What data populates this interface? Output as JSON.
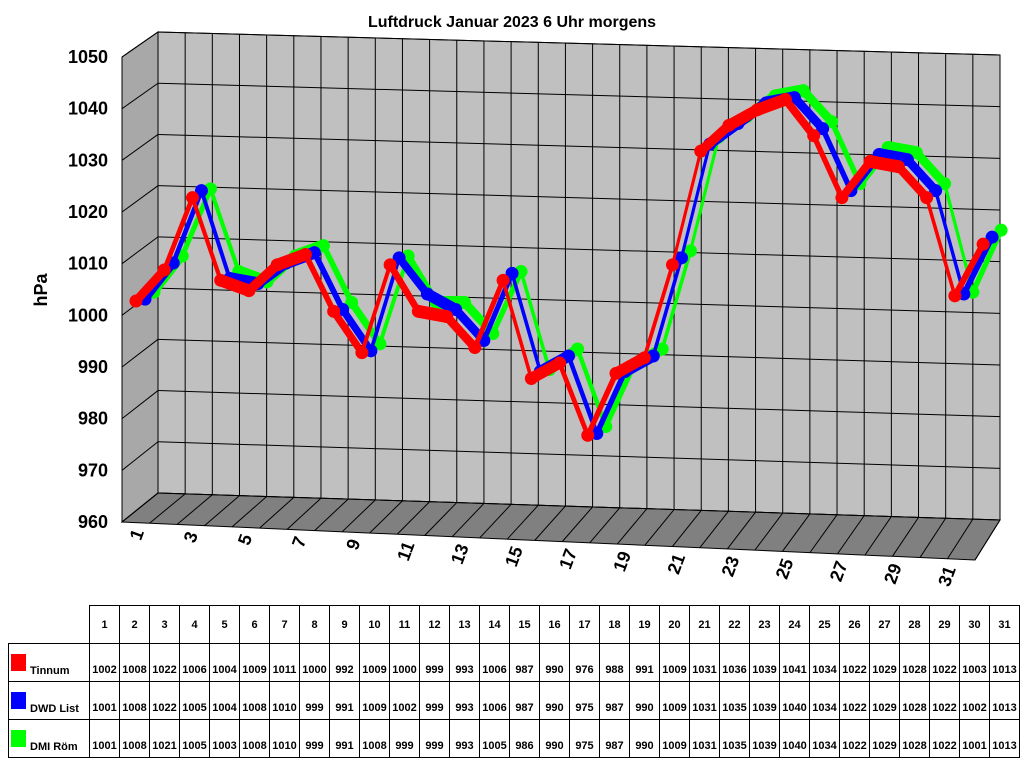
{
  "chart_data": {
    "type": "line",
    "title": "Luftdruck Januar 2023 6 Uhr morgens",
    "ylabel": "hPa",
    "xlabel": "",
    "ylim": [
      960,
      1050
    ],
    "yticks": [
      "960",
      "970",
      "980",
      "990",
      "1000",
      "1010",
      "1020",
      "1030",
      "1040",
      "1050"
    ],
    "categories": [
      "1",
      "2",
      "3",
      "4",
      "5",
      "6",
      "7",
      "8",
      "9",
      "10",
      "11",
      "12",
      "13",
      "14",
      "15",
      "16",
      "17",
      "18",
      "19",
      "20",
      "21",
      "22",
      "23",
      "24",
      "25",
      "26",
      "27",
      "28",
      "29",
      "30",
      "31"
    ],
    "xtick_labels": [
      "1",
      "3",
      "5",
      "7",
      "9",
      "11",
      "13",
      "15",
      "17",
      "19",
      "21",
      "23",
      "25",
      "27",
      "29",
      "31"
    ],
    "grid": true,
    "view": "3d",
    "series": [
      {
        "name": "Tinnum",
        "color": "#ff0000",
        "values": [
          1002,
          1008,
          1022,
          1006,
          1004,
          1009,
          1011,
          1000,
          992,
          1009,
          1000,
          999,
          993,
          1006,
          987,
          990,
          976,
          988,
          991,
          1009,
          1031,
          1036,
          1039,
          1041,
          1034,
          1022,
          1029,
          1028,
          1022,
          1003,
          1013
        ]
      },
      {
        "name": "DWD List",
        "color": "#0000ff",
        "values": [
          1001,
          1008,
          1022,
          1005,
          1004,
          1008,
          1010,
          999,
          991,
          1009,
          1002,
          999,
          993,
          1006,
          987,
          990,
          975,
          987,
          990,
          1009,
          1031,
          1035,
          1039,
          1040,
          1034,
          1022,
          1029,
          1028,
          1022,
          1002,
          1013
        ]
      },
      {
        "name": "DMI Röm",
        "color": "#00ff00",
        "values": [
          1001,
          1008,
          1021,
          1005,
          1003,
          1008,
          1010,
          999,
          991,
          1008,
          999,
          999,
          993,
          1005,
          986,
          990,
          975,
          987,
          990,
          1009,
          1031,
          1035,
          1039,
          1040,
          1034,
          1022,
          1029,
          1028,
          1022,
          1001,
          1013
        ]
      }
    ]
  }
}
